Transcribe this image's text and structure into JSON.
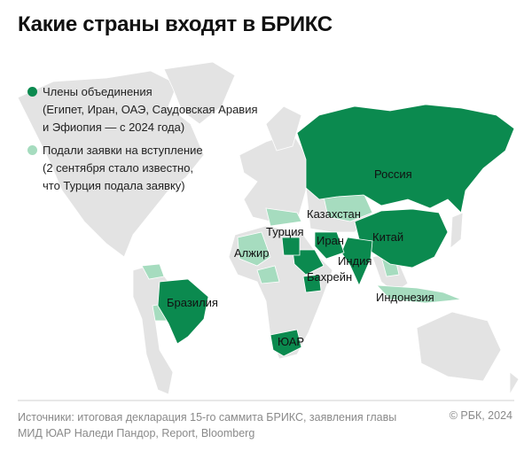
{
  "title": "Какие страны входят в БРИКС",
  "colors": {
    "member": "#0b8a4f",
    "applicant": "#a6dcbf",
    "other": "#e3e3e3"
  },
  "legend": [
    {
      "label": "Члены объединения",
      "note": "(Египет, Иран, ОАЭ, Саудовская Аравия и Эфиопия — с 2024 года)"
    },
    {
      "label": "Подали заявки на вступление",
      "note": "(2 сентября стало известно, что Турция подала заявку)"
    }
  ],
  "labels": {
    "russia": "Россия",
    "kazakhstan": "Казахстан",
    "turkey": "Турция",
    "iran": "Иран",
    "china": "Китай",
    "algeria": "Алжир",
    "india": "Индия",
    "bahrain": "Бахрейн",
    "brazil": "Бразилия",
    "indonesia": "Индонезия",
    "south_africa": "ЮАР"
  },
  "footer": {
    "sources": "Источники: итоговая декларация 15-го саммита БРИКС, заявления главы МИД ЮАР Наледи Пандор, Report, Bloomberg",
    "copyright": "© РБК, 2024"
  }
}
